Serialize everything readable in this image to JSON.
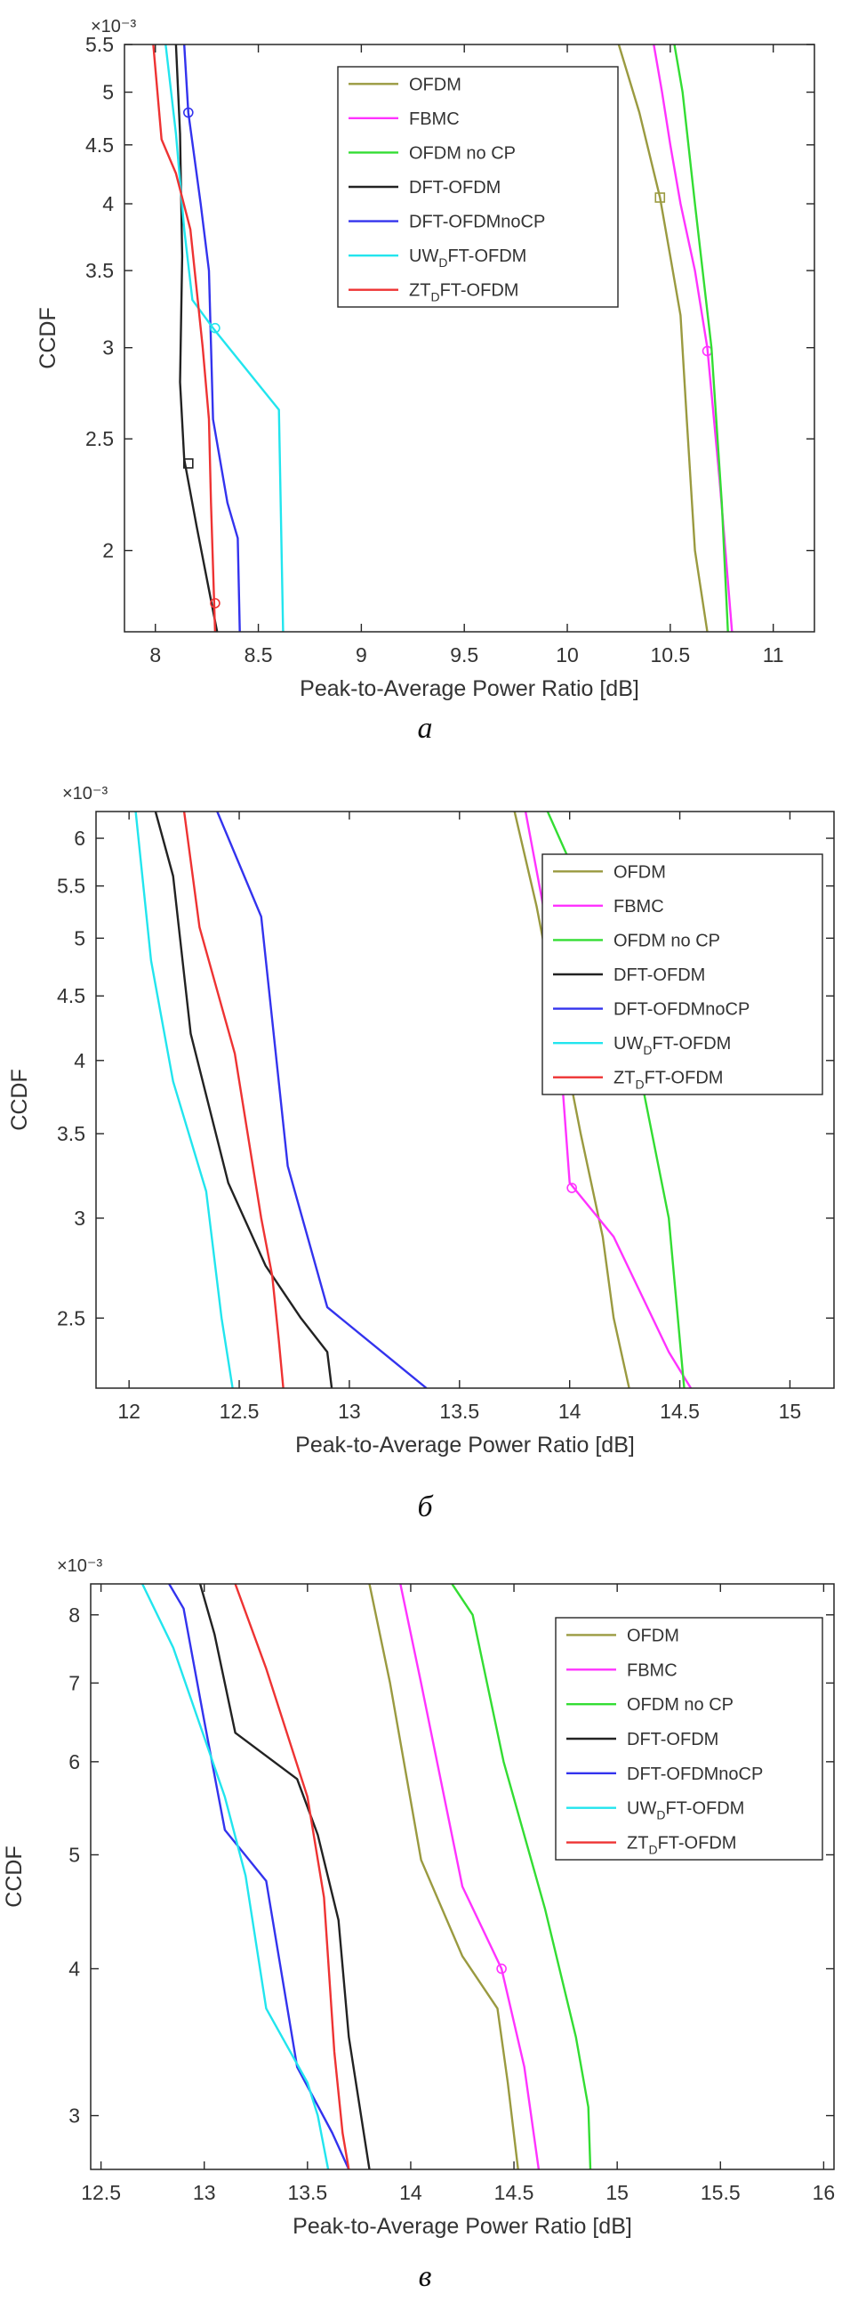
{
  "chart_data": [
    {
      "type": "line",
      "panel": "a",
      "caption": "а",
      "xlabel": "Peak-to-Average Power Ratio [dB]",
      "ylabel": "CCDF",
      "yscale": "log",
      "exponent_label": "×10⁻³",
      "xlim": [
        7.85,
        11.2
      ],
      "ylim": [
        1.7,
        5.5
      ],
      "xticks": [
        8,
        8.5,
        9,
        9.5,
        10,
        10.5,
        11
      ],
      "xticklabels": [
        "8",
        "8.5",
        "9",
        "9.5",
        "10",
        "10.5",
        "11"
      ],
      "yticks": [
        2,
        2.5,
        3,
        3.5,
        4,
        4.5,
        5,
        5.5
      ],
      "yticklabels": [
        "2",
        "2.5",
        "3",
        "3.5",
        "4",
        "4.5",
        "5",
        "5.5"
      ],
      "legend_position": "top-center",
      "series": [
        {
          "name": "OFDM",
          "color": "#9a9a40",
          "points": [
            [
              10.25,
              5.5
            ],
            [
              10.35,
              4.8
            ],
            [
              10.45,
              4.05
            ],
            [
              10.5,
              3.6
            ],
            [
              10.55,
              3.2
            ],
            [
              10.58,
              2.6
            ],
            [
              10.62,
              2.0
            ],
            [
              10.68,
              1.7
            ]
          ],
          "markers": [
            [
              10.45,
              4.05
            ]
          ]
        },
        {
          "name": "FBMC",
          "color": "#ff33ff",
          "points": [
            [
              10.42,
              5.5
            ],
            [
              10.46,
              5.0
            ],
            [
              10.5,
              4.5
            ],
            [
              10.55,
              4.0
            ],
            [
              10.62,
              3.5
            ],
            [
              10.68,
              3.0
            ],
            [
              10.74,
              2.3
            ],
            [
              10.8,
              1.7
            ]
          ],
          "markers": [
            [
              10.68,
              2.98
            ]
          ]
        },
        {
          "name": "OFDM no CP",
          "color": "#33dd33",
          "points": [
            [
              10.52,
              5.5
            ],
            [
              10.56,
              5.0
            ],
            [
              10.62,
              4.0
            ],
            [
              10.7,
              3.0
            ],
            [
              10.75,
              2.2
            ],
            [
              10.78,
              1.7
            ]
          ],
          "markers": []
        },
        {
          "name": "DFT-OFDM",
          "color": "#222222",
          "points": [
            [
              8.1,
              5.5
            ],
            [
              8.12,
              4.6
            ],
            [
              8.13,
              3.6
            ],
            [
              8.12,
              2.8
            ],
            [
              8.14,
              2.4
            ],
            [
              8.2,
              2.1
            ],
            [
              8.3,
              1.7
            ]
          ],
          "markers": [
            [
              8.16,
              2.38
            ]
          ]
        },
        {
          "name": "DFT-OFDMnoCP",
          "color": "#3333ee",
          "points": [
            [
              8.14,
              5.5
            ],
            [
              8.16,
              4.8
            ],
            [
              8.22,
              4.0
            ],
            [
              8.26,
              3.5
            ],
            [
              8.28,
              2.6
            ],
            [
              8.35,
              2.2
            ],
            [
              8.4,
              2.05
            ],
            [
              8.41,
              1.7
            ]
          ],
          "markers": [
            [
              8.16,
              4.8
            ]
          ]
        },
        {
          "name": "UWDFT-OFDM",
          "label_main": "UW",
          "label_sub": "D",
          "label_tail": "FT-OFDM",
          "color": "#22e5ee",
          "points": [
            [
              8.05,
              5.5
            ],
            [
              8.1,
              4.6
            ],
            [
              8.14,
              3.8
            ],
            [
              8.18,
              3.3
            ],
            [
              8.28,
              3.12
            ],
            [
              8.6,
              2.65
            ],
            [
              8.62,
              1.7
            ]
          ],
          "markers": [
            [
              8.29,
              3.12
            ]
          ]
        },
        {
          "name": "ZTDFT-OFDM",
          "label_main": "ZT",
          "label_sub": "D",
          "label_tail": "FT-OFDM",
          "color": "#ee3333",
          "points": [
            [
              7.99,
              5.5
            ],
            [
              8.03,
              4.55
            ],
            [
              8.1,
              4.25
            ],
            [
              8.17,
              3.8
            ],
            [
              8.23,
              3.0
            ],
            [
              8.26,
              2.6
            ],
            [
              8.27,
              2.2
            ],
            [
              8.29,
              1.7
            ]
          ],
          "markers": [
            [
              8.29,
              1.8
            ]
          ]
        }
      ]
    },
    {
      "type": "line",
      "panel": "b",
      "caption": "б",
      "xlabel": "Peak-to-Average Power Ratio [dB]",
      "ylabel": "CCDF",
      "yscale": "log",
      "exponent_label": "×10⁻³",
      "xlim": [
        11.85,
        15.2
      ],
      "ylim": [
        2.2,
        6.3
      ],
      "xticks": [
        12,
        12.5,
        13,
        13.5,
        14,
        14.5,
        15
      ],
      "xticklabels": [
        "12",
        "12.5",
        "13",
        "13.5",
        "14",
        "14.5",
        "15"
      ],
      "yticks": [
        2.5,
        3,
        3.5,
        4,
        4.5,
        5,
        5.5,
        6
      ],
      "yticklabels": [
        "2.5",
        "3",
        "3.5",
        "4",
        "4.5",
        "5",
        "5.5",
        "6"
      ],
      "legend_position": "top-right",
      "series": [
        {
          "name": "OFDM",
          "color": "#9a9a40",
          "points": [
            [
              13.75,
              6.3
            ],
            [
              13.85,
              5.3
            ],
            [
              13.95,
              4.3
            ],
            [
              14.05,
              3.5
            ],
            [
              14.15,
              2.9
            ],
            [
              14.2,
              2.5
            ],
            [
              14.27,
              2.2
            ]
          ],
          "markers": []
        },
        {
          "name": "FBMC",
          "color": "#ff33ff",
          "points": [
            [
              13.8,
              6.3
            ],
            [
              13.88,
              5.3
            ],
            [
              13.95,
              4.2
            ],
            [
              14.0,
              3.2
            ],
            [
              14.2,
              2.9
            ],
            [
              14.45,
              2.35
            ],
            [
              14.55,
              2.2
            ]
          ],
          "markers": [
            [
              14.01,
              3.17
            ]
          ]
        },
        {
          "name": "OFDM no CP",
          "color": "#33dd33",
          "points": [
            [
              13.9,
              6.3
            ],
            [
              14.05,
              5.5
            ],
            [
              14.25,
              4.5
            ],
            [
              14.45,
              3.0
            ],
            [
              14.52,
              2.2
            ]
          ],
          "markers": []
        },
        {
          "name": "DFT-OFDM",
          "color": "#222222",
          "points": [
            [
              12.12,
              6.3
            ],
            [
              12.2,
              5.6
            ],
            [
              12.28,
              4.2
            ],
            [
              12.45,
              3.2
            ],
            [
              12.62,
              2.75
            ],
            [
              12.78,
              2.5
            ],
            [
              12.9,
              2.35
            ],
            [
              12.92,
              2.2
            ]
          ],
          "markers": []
        },
        {
          "name": "DFT-OFDMnoCP",
          "color": "#3333ee",
          "points": [
            [
              12.4,
              6.3
            ],
            [
              12.6,
              5.2
            ],
            [
              12.72,
              3.3
            ],
            [
              12.9,
              2.55
            ],
            [
              13.35,
              2.2
            ]
          ],
          "markers": []
        },
        {
          "name": "UWDFT-OFDM",
          "label_main": "UW",
          "label_sub": "D",
          "label_tail": "FT-OFDM",
          "color": "#22e5ee",
          "points": [
            [
              12.03,
              6.3
            ],
            [
              12.1,
              4.8
            ],
            [
              12.2,
              3.85
            ],
            [
              12.35,
              3.15
            ],
            [
              12.42,
              2.5
            ],
            [
              12.47,
              2.2
            ]
          ],
          "markers": []
        },
        {
          "name": "ZTDFT-OFDM",
          "label_main": "ZT",
          "label_sub": "D",
          "label_tail": "FT-OFDM",
          "color": "#ee3333",
          "points": [
            [
              12.25,
              6.3
            ],
            [
              12.32,
              5.1
            ],
            [
              12.48,
              4.05
            ],
            [
              12.6,
              3.0
            ],
            [
              12.65,
              2.7
            ],
            [
              12.68,
              2.4
            ],
            [
              12.7,
              2.2
            ]
          ],
          "markers": []
        }
      ]
    },
    {
      "type": "line",
      "panel": "c",
      "caption": "в",
      "xlabel": "Peak-to-Average Power Ratio [dB]",
      "ylabel": "CCDF",
      "yscale": "log",
      "exponent_label": "×10⁻³",
      "xlim": [
        12.45,
        16.05
      ],
      "ylim": [
        2.7,
        8.5
      ],
      "xticks": [
        12.5,
        13,
        13.5,
        14,
        14.5,
        15,
        15.5,
        16
      ],
      "xticklabels": [
        "12.5",
        "13",
        "13.5",
        "14",
        "14.5",
        "15",
        "15.5",
        "16"
      ],
      "yticks": [
        3,
        4,
        5,
        6,
        7,
        8
      ],
      "yticklabels": [
        "3",
        "4",
        "5",
        "6",
        "7",
        "8"
      ],
      "legend_position": "top-right",
      "series": [
        {
          "name": "OFDM",
          "color": "#9a9a40",
          "points": [
            [
              13.8,
              8.5
            ],
            [
              13.9,
              7.0
            ],
            [
              14.05,
              4.95
            ],
            [
              14.25,
              4.1
            ],
            [
              14.42,
              3.7
            ],
            [
              14.47,
              3.2
            ],
            [
              14.52,
              2.7
            ]
          ],
          "markers": []
        },
        {
          "name": "FBMC",
          "color": "#ff33ff",
          "points": [
            [
              13.95,
              8.5
            ],
            [
              14.05,
              7.0
            ],
            [
              14.25,
              4.7
            ],
            [
              14.44,
              4.0
            ],
            [
              14.55,
              3.3
            ],
            [
              14.62,
              2.7
            ]
          ],
          "markers": [
            [
              14.44,
              4.0
            ]
          ]
        },
        {
          "name": "OFDM no CP",
          "color": "#33dd33",
          "points": [
            [
              14.2,
              8.5
            ],
            [
              14.3,
              8.0
            ],
            [
              14.45,
              6.0
            ],
            [
              14.65,
              4.5
            ],
            [
              14.8,
              3.5
            ],
            [
              14.86,
              3.05
            ],
            [
              14.87,
              2.7
            ]
          ],
          "markers": []
        },
        {
          "name": "DFT-OFDM",
          "color": "#222222",
          "points": [
            [
              12.98,
              8.5
            ],
            [
              13.05,
              7.7
            ],
            [
              13.15,
              6.35
            ],
            [
              13.45,
              5.8
            ],
            [
              13.55,
              5.2
            ],
            [
              13.65,
              4.4
            ],
            [
              13.7,
              3.5
            ],
            [
              13.8,
              2.7
            ]
          ],
          "markers": []
        },
        {
          "name": "DFT-OFDMnoCP",
          "color": "#3333ee",
          "points": [
            [
              12.83,
              8.5
            ],
            [
              12.9,
              8.1
            ],
            [
              13.0,
              6.5
            ],
            [
              13.1,
              5.25
            ],
            [
              13.3,
              4.75
            ],
            [
              13.45,
              3.3
            ],
            [
              13.62,
              2.9
            ],
            [
              13.7,
              2.7
            ]
          ],
          "markers": []
        },
        {
          "name": "UWDFT-OFDM",
          "label_main": "UW",
          "label_sub": "D",
          "label_tail": "FT-OFDM",
          "color": "#22e5ee",
          "points": [
            [
              12.7,
              8.5
            ],
            [
              12.85,
              7.5
            ],
            [
              13.1,
              5.6
            ],
            [
              13.2,
              4.8
            ],
            [
              13.3,
              3.7
            ],
            [
              13.5,
              3.2
            ],
            [
              13.55,
              3.0
            ],
            [
              13.6,
              2.7
            ]
          ],
          "markers": []
        },
        {
          "name": "ZTDFT-OFDM",
          "label_main": "ZT",
          "label_sub": "D",
          "label_tail": "FT-OFDM",
          "color": "#ee3333",
          "points": [
            [
              13.15,
              8.5
            ],
            [
              13.3,
              7.2
            ],
            [
              13.5,
              5.6
            ],
            [
              13.58,
              4.6
            ],
            [
              13.63,
              3.4
            ],
            [
              13.67,
              2.9
            ],
            [
              13.7,
              2.7
            ]
          ],
          "markers": []
        }
      ]
    }
  ]
}
